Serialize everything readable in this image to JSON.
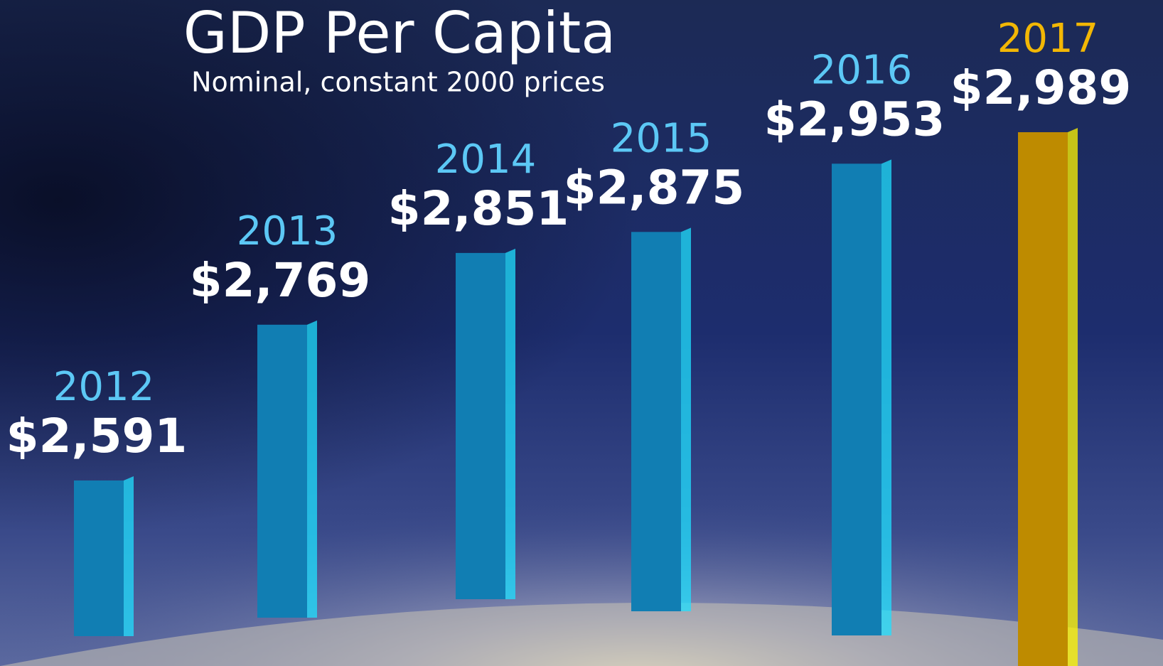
{
  "chart_data": {
    "type": "bar",
    "title": "GDP Per Capita",
    "subtitle": "Nominal, constant 2000 prices",
    "categories": [
      "2012",
      "2013",
      "2014",
      "2015",
      "2016",
      "2017"
    ],
    "values": [
      2591,
      2769,
      2851,
      2875,
      2953,
      2989
    ],
    "value_labels": [
      "$2,591",
      "$2,769",
      "$2,851",
      "$2,875",
      "$2,953",
      "$2,989"
    ],
    "colors": [
      "#1595d3",
      "#1595d3",
      "#1595d3",
      "#1595d3",
      "#1595d3",
      "#e0a400"
    ],
    "label_colors": [
      "#5cc8f5",
      "#5cc8f5",
      "#5cc8f5",
      "#5cc8f5",
      "#5cc8f5",
      "#f2b705"
    ]
  }
}
